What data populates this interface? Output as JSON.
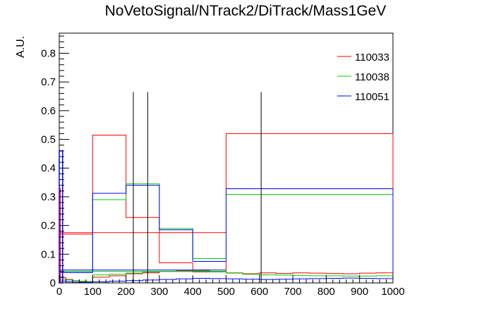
{
  "chart_data": {
    "type": "histogram",
    "title": "NoVetoSignal/NTrack2/DiTrack/Mass1GeV",
    "xlabel": "",
    "ylabel": "A.U.",
    "xlim": [
      0,
      1000
    ],
    "ylim": [
      0,
      0.87
    ],
    "x_ticks": [
      0,
      100,
      200,
      300,
      400,
      500,
      600,
      700,
      800,
      900,
      1000
    ],
    "y_ticks": [
      0,
      0.1,
      0.2,
      0.3,
      0.4,
      0.5,
      0.6,
      0.7,
      0.8
    ],
    "legend_position": "top-right",
    "colors": {
      "110033": "#ff0000",
      "110038": "#00cc00",
      "110051": "#0000ff",
      "markers": "#000000"
    },
    "series": [
      {
        "name": "110033",
        "color": "#ff0000",
        "coarse": {
          "edges": [
            0,
            100,
            200,
            300,
            400,
            500,
            1000
          ],
          "values": [
            0.17,
            0.515,
            0.228,
            0.07,
            0.038,
            0.52
          ]
        },
        "flat": {
          "from": 0,
          "to": 500,
          "value": 0.175
        },
        "fine": {
          "edges": [
            0,
            20,
            40,
            60,
            80,
            100,
            150,
            200,
            250,
            300,
            350,
            400,
            450,
            500,
            550,
            600,
            650,
            700,
            750,
            800,
            850,
            900,
            950,
            1000
          ],
          "values": [
            0.018,
            0.012,
            0.008,
            0.005,
            0.004,
            0.02,
            0.025,
            0.032,
            0.035,
            0.04,
            0.042,
            0.045,
            0.04,
            0.035,
            0.032,
            0.035,
            0.033,
            0.035,
            0.034,
            0.033,
            0.032,
            0.034,
            0.035
          ]
        }
      },
      {
        "name": "110038",
        "color": "#00cc00",
        "coarse": {
          "edges": [
            0,
            100,
            200,
            300,
            400,
            500,
            1000
          ],
          "values": [
            0.04,
            0.29,
            0.345,
            0.19,
            0.085,
            0.308
          ]
        },
        "flat": {
          "from": 0,
          "to": 500,
          "value": 0.04
        },
        "fine": {
          "edges": [
            0,
            20,
            40,
            60,
            80,
            100,
            150,
            200,
            250,
            300,
            350,
            400,
            450,
            500,
            550,
            600,
            650,
            700,
            750,
            800,
            850,
            900,
            950,
            1000
          ],
          "values": [
            0.012,
            0.01,
            0.008,
            0.006,
            0.005,
            0.028,
            0.03,
            0.034,
            0.038,
            0.04,
            0.04,
            0.042,
            0.038,
            0.034,
            0.03,
            0.028,
            0.027,
            0.026,
            0.025,
            0.025,
            0.024,
            0.024,
            0.025
          ]
        }
      },
      {
        "name": "110051",
        "color": "#0000ff",
        "coarse": {
          "edges": [
            0,
            100,
            200,
            300,
            400,
            500,
            1000
          ],
          "values": [
            0.036,
            0.312,
            0.34,
            0.185,
            0.075,
            0.328
          ]
        },
        "flat": {
          "from": 0,
          "to": 500,
          "value": 0.045
        },
        "fine": {
          "edges": [
            0,
            20,
            40,
            60,
            80,
            100,
            150,
            200,
            250,
            300,
            350,
            400,
            450,
            500,
            550,
            600,
            650,
            700,
            750,
            800,
            850,
            900,
            950,
            1000
          ],
          "values": [
            0.006,
            0.004,
            0.003,
            0.002,
            0.002,
            0.004,
            0.006,
            0.008,
            0.01,
            0.012,
            0.014,
            0.016,
            0.015,
            0.014,
            0.013,
            0.012,
            0.013,
            0.014,
            0.015,
            0.016,
            0.017,
            0.016,
            0.015
          ]
        }
      }
    ],
    "spike": {
      "x": [
        0,
        10
      ],
      "value": 0.46
    },
    "vertical_lines": [
      {
        "x": 222,
        "y": 0.665
      },
      {
        "x": 265,
        "y": 0.665
      },
      {
        "x": 605,
        "y": 0.665
      }
    ]
  }
}
